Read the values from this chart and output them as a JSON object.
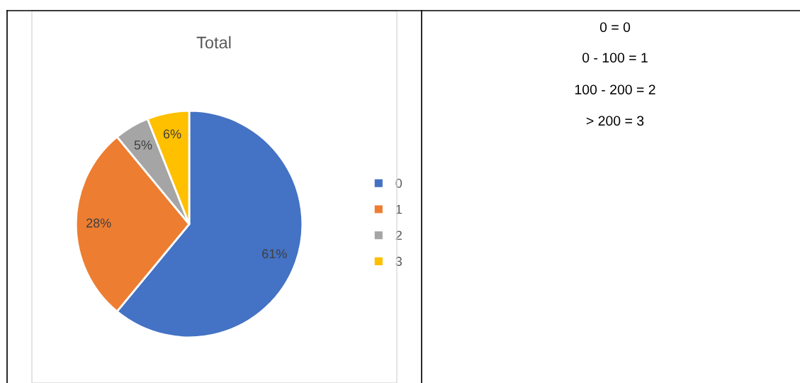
{
  "chart_data": [
    {
      "type": "pie",
      "title": "Total",
      "categories": [
        "0",
        "1",
        "2",
        "3"
      ],
      "values": [
        61,
        28,
        5,
        6
      ],
      "colors": [
        "#4472c4",
        "#ed7d31",
        "#a5a5a5",
        "#ffc000"
      ],
      "value_labels": [
        "61%",
        "28%",
        "5%",
        "6%"
      ],
      "legend": "right"
    },
    {
      "type": "other",
      "annotations": [
        "0 = 0",
        "0 - 100 = 1",
        "100 - 200 = 2",
        "> 200 = 3"
      ]
    }
  ]
}
